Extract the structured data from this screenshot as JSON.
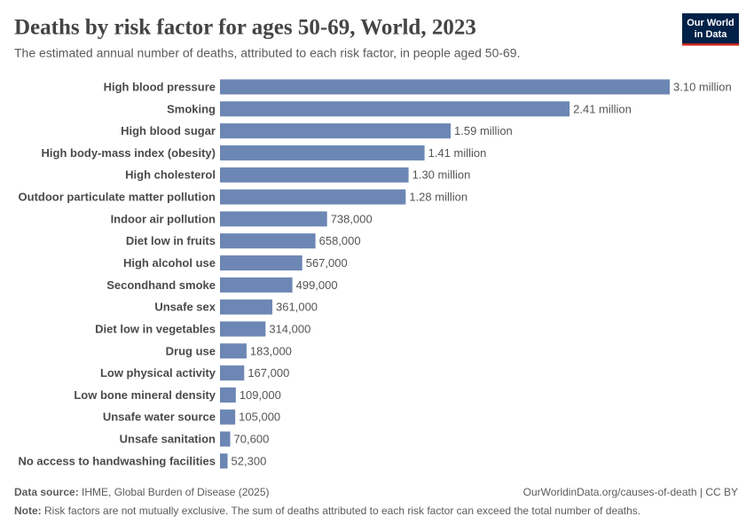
{
  "chart_data": {
    "type": "bar",
    "orientation": "horizontal",
    "title": "Deaths by risk factor for ages 50-69, World, 2023",
    "subtitle": "The estimated annual number of deaths, attributed to each risk factor, in people aged 50-69.",
    "categories": [
      "High blood pressure",
      "Smoking",
      "High blood sugar",
      "High body-mass index (obesity)",
      "High cholesterol",
      "Outdoor particulate matter pollution",
      "Indoor air pollution",
      "Diet low in fruits",
      "High alcohol use",
      "Secondhand smoke",
      "Unsafe sex",
      "Diet low in vegetables",
      "Drug use",
      "Low physical activity",
      "Low bone mineral density",
      "Unsafe water source",
      "Unsafe sanitation",
      "No access to handwashing facilities"
    ],
    "values": [
      3100000,
      2410000,
      1590000,
      1410000,
      1300000,
      1280000,
      738000,
      658000,
      567000,
      499000,
      361000,
      314000,
      183000,
      167000,
      109000,
      105000,
      70600,
      52300
    ],
    "value_labels": [
      "3.10 million",
      "2.41 million",
      "1.59 million",
      "1.41 million",
      "1.30 million",
      "1.28 million",
      "738,000",
      "658,000",
      "567,000",
      "499,000",
      "361,000",
      "314,000",
      "183,000",
      "167,000",
      "109,000",
      "105,000",
      "70,600",
      "52,300"
    ],
    "color": "#6d87b4",
    "logo": [
      "Our World",
      "in Data"
    ],
    "source_label": "Data source:",
    "source": "IHME, Global Burden of Disease (2025)",
    "url": "OurWorldinData.org/causes-of-death | CC BY",
    "note_label": "Note:",
    "note": "Risk factors are not mutually exclusive. The sum of deaths attributed to each risk factor can exceed the total number of deaths."
  }
}
